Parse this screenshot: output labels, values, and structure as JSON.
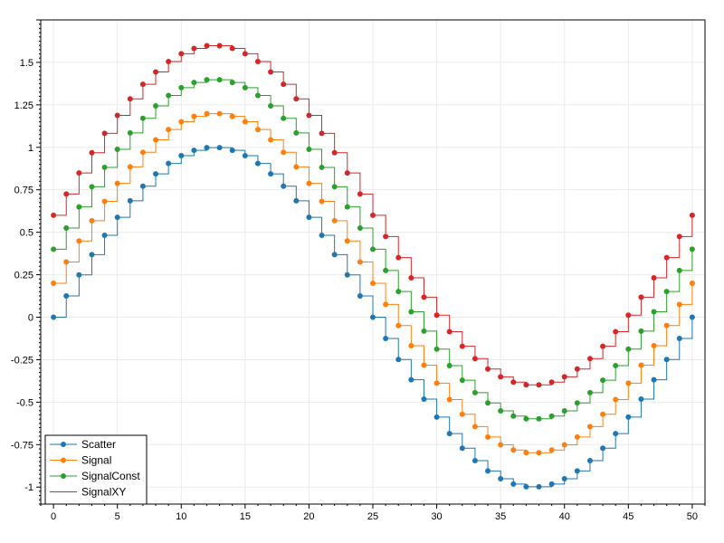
{
  "chart_data": {
    "type": "line",
    "step": true,
    "grid": true,
    "legend_position": "bottom-left",
    "xlim": [
      -1,
      51
    ],
    "ylim": [
      -1.1,
      1.75
    ],
    "x_ticks": [
      0,
      5,
      10,
      15,
      20,
      25,
      30,
      35,
      40,
      45,
      50
    ],
    "x_tick_labels": [
      "0",
      "5",
      "10",
      "15",
      "20",
      "25",
      "30",
      "35",
      "40",
      "45",
      "50"
    ],
    "y_ticks": [
      -1,
      -0.75,
      -0.5,
      -0.25,
      0,
      0.25,
      0.5,
      0.75,
      1,
      1.25,
      1.5
    ],
    "y_tick_labels": [
      "-1",
      "-0.75",
      "-0.5",
      "-0.25",
      "0",
      "0.25",
      "0.5",
      "0.75",
      "1",
      "1.25",
      "1.5"
    ],
    "x": [
      0,
      1,
      2,
      3,
      4,
      5,
      6,
      7,
      8,
      9,
      10,
      11,
      12,
      13,
      14,
      15,
      16,
      17,
      18,
      19,
      20,
      21,
      22,
      23,
      24,
      25,
      26,
      27,
      28,
      29,
      30,
      31,
      32,
      33,
      34,
      35,
      36,
      37,
      38,
      39,
      40,
      41,
      42,
      43,
      44,
      45,
      46,
      47,
      48,
      49,
      50
    ],
    "series": [
      {
        "name": "Scatter",
        "color": "#1f77b4",
        "markers": true,
        "values": [
          0,
          0.125,
          0.249,
          0.368,
          0.482,
          0.588,
          0.685,
          0.771,
          0.844,
          0.905,
          0.951,
          0.982,
          0.998,
          0.998,
          0.982,
          0.951,
          0.905,
          0.844,
          0.771,
          0.685,
          0.588,
          0.482,
          0.368,
          0.249,
          0.125,
          0,
          -0.125,
          -0.249,
          -0.368,
          -0.482,
          -0.588,
          -0.685,
          -0.771,
          -0.844,
          -0.905,
          -0.951,
          -0.982,
          -0.998,
          -0.998,
          -0.982,
          -0.951,
          -0.905,
          -0.844,
          -0.771,
          -0.685,
          -0.588,
          -0.482,
          -0.368,
          -0.249,
          -0.125,
          0
        ]
      },
      {
        "name": "Signal",
        "color": "#ff7f0e",
        "markers": true,
        "values": [
          0.2,
          0.325,
          0.449,
          0.568,
          0.682,
          0.788,
          0.885,
          0.971,
          1.044,
          1.105,
          1.151,
          1.182,
          1.198,
          1.198,
          1.182,
          1.151,
          1.105,
          1.044,
          0.971,
          0.885,
          0.788,
          0.682,
          0.568,
          0.449,
          0.325,
          0.2,
          0.075,
          -0.049,
          -0.168,
          -0.282,
          -0.388,
          -0.485,
          -0.571,
          -0.644,
          -0.705,
          -0.751,
          -0.782,
          -0.798,
          -0.798,
          -0.782,
          -0.751,
          -0.705,
          -0.644,
          -0.571,
          -0.485,
          -0.388,
          -0.282,
          -0.168,
          -0.049,
          0.075,
          0.2
        ]
      },
      {
        "name": "SignalConst",
        "color": "#2ca02c",
        "markers": true,
        "values": [
          0.4,
          0.525,
          0.649,
          0.768,
          0.882,
          0.988,
          1.085,
          1.171,
          1.244,
          1.305,
          1.351,
          1.382,
          1.398,
          1.398,
          1.382,
          1.351,
          1.305,
          1.244,
          1.171,
          1.085,
          0.988,
          0.882,
          0.768,
          0.649,
          0.525,
          0.4,
          0.275,
          0.151,
          0.032,
          -0.082,
          -0.188,
          -0.285,
          -0.371,
          -0.444,
          -0.505,
          -0.551,
          -0.582,
          -0.598,
          -0.598,
          -0.582,
          -0.551,
          -0.505,
          -0.444,
          -0.371,
          -0.285,
          -0.188,
          -0.082,
          0.032,
          0.151,
          0.275,
          0.4
        ]
      },
      {
        "name": "SignalXY",
        "color": "#d62728",
        "markers": false,
        "values": [
          0.6,
          0.725,
          0.849,
          0.968,
          1.082,
          1.188,
          1.285,
          1.371,
          1.444,
          1.505,
          1.551,
          1.582,
          1.598,
          1.598,
          1.582,
          1.551,
          1.505,
          1.444,
          1.371,
          1.285,
          1.188,
          1.082,
          0.968,
          0.849,
          0.725,
          0.6,
          0.475,
          0.351,
          0.232,
          0.118,
          0.012,
          -0.085,
          -0.171,
          -0.244,
          -0.305,
          -0.351,
          -0.382,
          -0.398,
          -0.398,
          -0.382,
          -0.351,
          -0.305,
          -0.244,
          -0.171,
          -0.085,
          0.012,
          0.118,
          0.232,
          0.351,
          0.475,
          0.6
        ]
      }
    ]
  }
}
